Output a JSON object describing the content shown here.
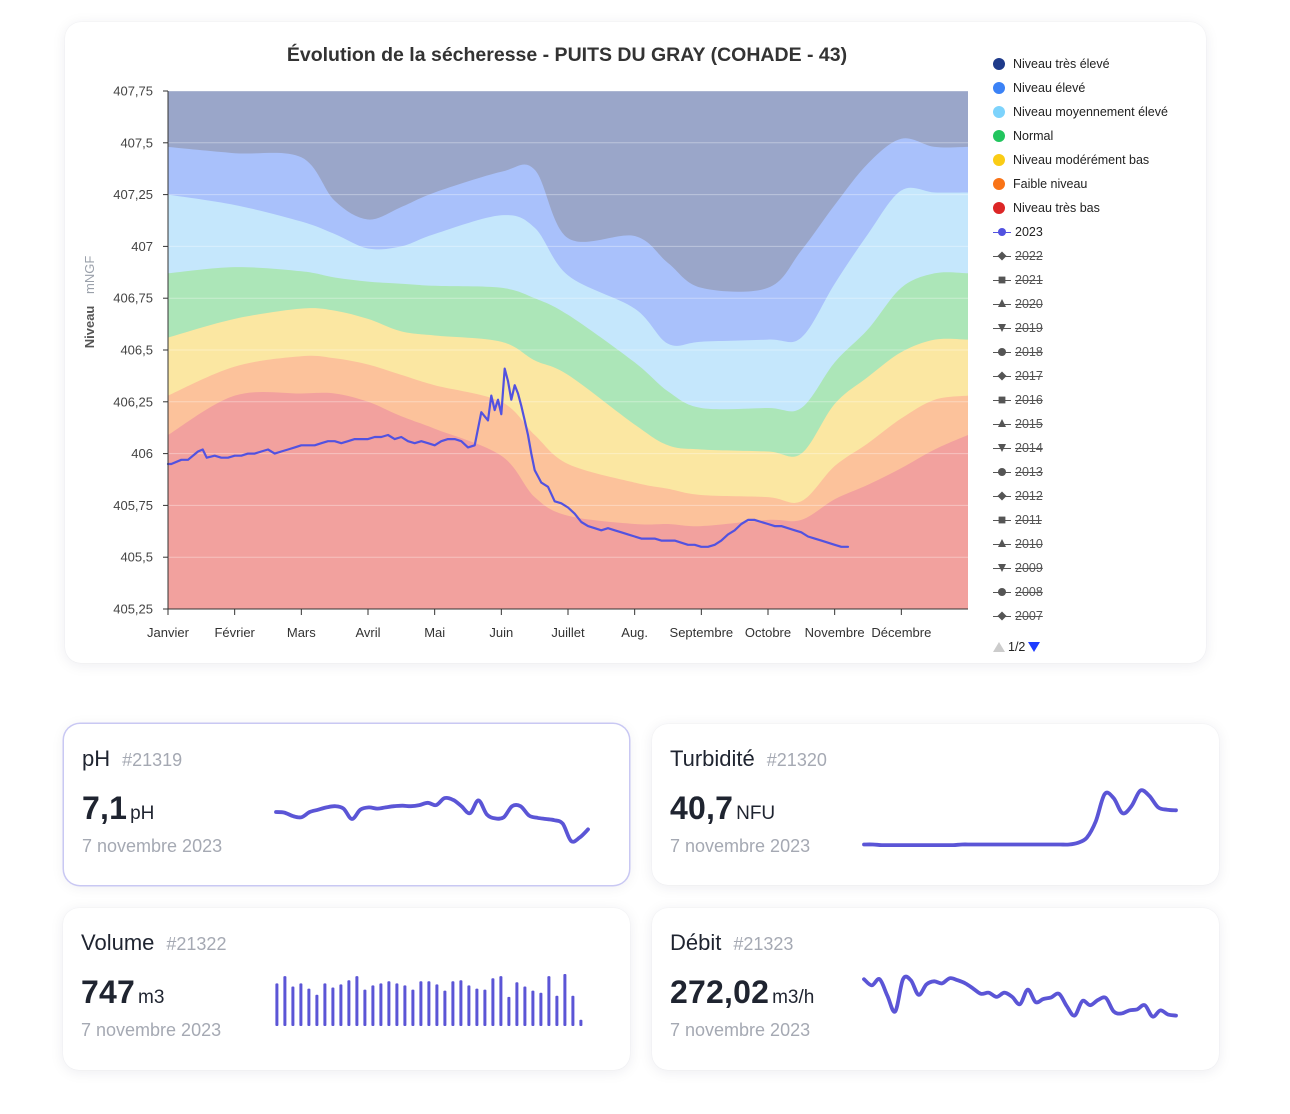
{
  "chart_data": {
    "type": "area",
    "title": "Évolution de la sécheresse - PUITS DU GRAY (COHADE - 43)",
    "ylabel": "Niveau",
    "yunit": "mNGF",
    "ylim": [
      405.25,
      407.75
    ],
    "yticks": [
      405.25,
      405.5,
      405.75,
      406,
      406.25,
      406.5,
      406.75,
      407,
      407.25,
      407.5,
      407.75
    ],
    "ytick_labels": [
      "405,25",
      "405,5",
      "405,75",
      "406",
      "406,25",
      "406,5",
      "406,75",
      "407",
      "407,25",
      "407,5",
      "407,75"
    ],
    "months": [
      "Janvier",
      "Février",
      "Mars",
      "Avril",
      "Mai",
      "Juin",
      "Juillet",
      "Aug.",
      "Septembre",
      "Octobre",
      "Novembre",
      "Décembre"
    ],
    "bands_x": [
      0,
      1,
      2,
      2.5,
      3,
      3.5,
      4,
      5,
      5.5,
      6,
      7,
      7.5,
      8,
      9,
      9.5,
      10,
      10.5,
      11,
      11.5,
      12
    ],
    "bands": [
      {
        "name": "Niveau très élevé",
        "color": "#9aa6c9",
        "upper": [
          407.75,
          407.75,
          407.75,
          407.75,
          407.75,
          407.75,
          407.75,
          407.75,
          407.75,
          407.75,
          407.75,
          407.75,
          407.75,
          407.75,
          407.75,
          407.75,
          407.75,
          407.75,
          407.75,
          407.75
        ]
      },
      {
        "name": "Niveau élevé",
        "color": "#a9c1fb",
        "upper": [
          407.48,
          407.45,
          407.43,
          407.22,
          407.13,
          407.19,
          407.26,
          407.36,
          407.37,
          407.04,
          407.05,
          406.92,
          406.8,
          406.8,
          406.98,
          407.2,
          407.4,
          407.52,
          407.48,
          407.48
        ]
      },
      {
        "name": "Niveau moyennement élevé",
        "color": "#c5e7fc",
        "upper": [
          407.25,
          407.2,
          407.12,
          407.06,
          406.99,
          407.0,
          407.06,
          407.15,
          407.09,
          406.86,
          406.7,
          406.53,
          406.54,
          406.55,
          406.56,
          406.82,
          407.06,
          407.27,
          407.26,
          407.26
        ]
      },
      {
        "name": "Normal",
        "color": "#ace6b8",
        "upper": [
          406.87,
          406.9,
          406.88,
          406.85,
          406.83,
          406.82,
          406.81,
          406.8,
          406.75,
          406.67,
          406.44,
          406.3,
          406.22,
          406.22,
          406.22,
          406.44,
          406.6,
          406.8,
          406.87,
          406.87
        ]
      },
      {
        "name": "Niveau modérément bas",
        "color": "#fbe7a2",
        "upper": [
          406.56,
          406.65,
          406.7,
          406.69,
          406.65,
          406.59,
          406.57,
          406.54,
          406.45,
          406.38,
          406.14,
          406.04,
          406.02,
          406.01,
          406.0,
          406.24,
          406.37,
          406.49,
          406.55,
          406.55
        ]
      },
      {
        "name": "Faible niveau",
        "color": "#fcc29b",
        "upper": [
          406.28,
          406.42,
          406.47,
          406.46,
          406.43,
          406.38,
          406.33,
          406.25,
          406.09,
          405.95,
          405.86,
          405.83,
          405.8,
          405.79,
          405.77,
          405.94,
          406.05,
          406.17,
          406.26,
          406.28
        ]
      },
      {
        "name": "Niveau très bas",
        "color": "#f2a19e",
        "upper": [
          406.09,
          406.28,
          406.29,
          406.29,
          406.25,
          406.18,
          406.12,
          405.99,
          405.79,
          405.7,
          405.66,
          405.66,
          405.65,
          405.68,
          405.68,
          405.78,
          405.85,
          405.93,
          406.02,
          406.09
        ]
      }
    ],
    "series": [
      {
        "name": "2023",
        "color": "#5252e0",
        "x": [
          0,
          0.05,
          0.2,
          0.3,
          0.45,
          0.52,
          0.58,
          0.7,
          0.8,
          0.9,
          1.0,
          1.1,
          1.2,
          1.3,
          1.4,
          1.5,
          1.6,
          1.7,
          1.8,
          1.9,
          2.0,
          2.1,
          2.2,
          2.3,
          2.4,
          2.5,
          2.6,
          2.7,
          2.8,
          2.9,
          3.0,
          3.1,
          3.2,
          3.3,
          3.4,
          3.5,
          3.6,
          3.7,
          3.8,
          3.9,
          4.0,
          4.1,
          4.2,
          4.3,
          4.4,
          4.5,
          4.6,
          4.7,
          4.8,
          4.85,
          4.9,
          4.95,
          5.0,
          5.05,
          5.1,
          5.15,
          5.2,
          5.25,
          5.3,
          5.35,
          5.4,
          5.45,
          5.5,
          5.55,
          5.6,
          5.7,
          5.8,
          5.9,
          6.0,
          6.1,
          6.2,
          6.3,
          6.4,
          6.5,
          6.6,
          6.7,
          6.8,
          6.9,
          7.0,
          7.1,
          7.2,
          7.3,
          7.4,
          7.5,
          7.6,
          7.7,
          7.8,
          7.9,
          8.0,
          8.1,
          8.2,
          8.3,
          8.4,
          8.5,
          8.6,
          8.7,
          8.8,
          8.9,
          9.0,
          9.1,
          9.2,
          9.3,
          9.4,
          9.5,
          9.6,
          9.7,
          9.8,
          9.9,
          10.0,
          10.1,
          10.2
        ],
        "values": [
          405.95,
          405.95,
          405.97,
          405.97,
          406.01,
          406.02,
          405.98,
          405.99,
          405.98,
          405.98,
          405.99,
          405.99,
          406.0,
          406.0,
          406.01,
          406.02,
          406.0,
          406.01,
          406.02,
          406.03,
          406.04,
          406.04,
          406.04,
          406.05,
          406.06,
          406.06,
          406.05,
          406.06,
          406.07,
          406.07,
          406.07,
          406.08,
          406.08,
          406.09,
          406.07,
          406.08,
          406.06,
          406.05,
          406.06,
          406.05,
          406.04,
          406.06,
          406.07,
          406.07,
          406.06,
          406.03,
          406.04,
          406.2,
          406.16,
          406.28,
          406.21,
          406.26,
          406.19,
          406.41,
          406.35,
          406.26,
          406.33,
          406.29,
          406.23,
          406.16,
          406.09,
          406.0,
          405.92,
          405.89,
          405.86,
          405.84,
          405.77,
          405.76,
          405.74,
          405.71,
          405.67,
          405.65,
          405.64,
          405.63,
          405.64,
          405.63,
          405.62,
          405.61,
          405.6,
          405.59,
          405.59,
          405.59,
          405.58,
          405.58,
          405.58,
          405.57,
          405.56,
          405.56,
          405.55,
          405.55,
          405.56,
          405.58,
          405.61,
          405.63,
          405.66,
          405.68,
          405.68,
          405.67,
          405.66,
          405.65,
          405.65,
          405.64,
          405.63,
          405.62,
          405.6,
          405.59,
          405.58,
          405.57,
          405.56,
          405.55,
          405.55
        ]
      }
    ]
  },
  "legend": {
    "bands": [
      {
        "label": "Niveau très élevé",
        "color": "#1e3a8a"
      },
      {
        "label": "Niveau élevé",
        "color": "#3b82f6"
      },
      {
        "label": "Niveau moyennement élevé",
        "color": "#7dd3fc"
      },
      {
        "label": "Normal",
        "color": "#22c55e"
      },
      {
        "label": "Niveau modérément bas",
        "color": "#facc15"
      },
      {
        "label": "Faible niveau",
        "color": "#f97316"
      },
      {
        "label": "Niveau très bas",
        "color": "#dc2626"
      }
    ],
    "years": [
      {
        "label": "2023",
        "marker": "circle",
        "active": true
      },
      {
        "label": "2022",
        "marker": "diamond",
        "active": false
      },
      {
        "label": "2021",
        "marker": "square",
        "active": false
      },
      {
        "label": "2020",
        "marker": "tri-up",
        "active": false
      },
      {
        "label": "2019",
        "marker": "tri-down",
        "active": false
      },
      {
        "label": "2018",
        "marker": "circle",
        "active": false
      },
      {
        "label": "2017",
        "marker": "diamond",
        "active": false
      },
      {
        "label": "2016",
        "marker": "square",
        "active": false
      },
      {
        "label": "2015",
        "marker": "tri-up",
        "active": false
      },
      {
        "label": "2014",
        "marker": "tri-down",
        "active": false
      },
      {
        "label": "2013",
        "marker": "circle",
        "active": false
      },
      {
        "label": "2012",
        "marker": "diamond",
        "active": false
      },
      {
        "label": "2011",
        "marker": "square",
        "active": false
      },
      {
        "label": "2010",
        "marker": "tri-up",
        "active": false
      },
      {
        "label": "2009",
        "marker": "tri-down",
        "active": false
      },
      {
        "label": "2008",
        "marker": "circle",
        "active": false
      },
      {
        "label": "2007",
        "marker": "diamond",
        "active": false
      }
    ],
    "page": "1/2"
  },
  "kpis": [
    {
      "key": "ph",
      "title": "pH",
      "id": "#21319",
      "value": "7,1",
      "unit": "pH",
      "date": "7 novembre 2023",
      "selected": true,
      "spark_type": "line",
      "spark": [
        0.62,
        0.61,
        0.55,
        0.53,
        0.62,
        0.66,
        0.7,
        0.72,
        0.68,
        0.5,
        0.66,
        0.7,
        0.68,
        0.7,
        0.72,
        0.73,
        0.72,
        0.74,
        0.78,
        0.74,
        0.86,
        0.83,
        0.72,
        0.6,
        0.82,
        0.58,
        0.51,
        0.53,
        0.72,
        0.72,
        0.56,
        0.52,
        0.5,
        0.48,
        0.42,
        0.12,
        0.18,
        0.32
      ]
    },
    {
      "key": "turbidite",
      "title": "Turbidité",
      "id": "#21320",
      "value": "40,7",
      "unit": "NFU",
      "date": "7 novembre 2023",
      "selected": false,
      "spark_type": "line",
      "spark": [
        0.06,
        0.06,
        0.05,
        0.05,
        0.05,
        0.05,
        0.05,
        0.05,
        0.05,
        0.05,
        0.05,
        0.06,
        0.06,
        0.06,
        0.06,
        0.06,
        0.06,
        0.06,
        0.06,
        0.06,
        0.06,
        0.06,
        0.06,
        0.06,
        0.09,
        0.18,
        0.46,
        0.93,
        0.86,
        0.6,
        0.72,
        0.99,
        0.9,
        0.7,
        0.66,
        0.65
      ]
    },
    {
      "key": "volume",
      "title": "Volume",
      "id": "#21322",
      "value": "747",
      "unit": "m3",
      "date": "7 novembre 2023",
      "selected": false,
      "spark_type": "bar",
      "spark": [
        0.82,
        0.96,
        0.76,
        0.82,
        0.72,
        0.6,
        0.82,
        0.74,
        0.8,
        0.88,
        0.96,
        0.7,
        0.78,
        0.82,
        0.86,
        0.82,
        0.78,
        0.7,
        0.86,
        0.86,
        0.8,
        0.68,
        0.86,
        0.88,
        0.78,
        0.72,
        0.7,
        0.92,
        0.96,
        0.56,
        0.84,
        0.76,
        0.68,
        0.64,
        0.96,
        0.58,
        1.0,
        0.58,
        0.12
      ]
    },
    {
      "key": "debit",
      "title": "Débit",
      "id": "#21323",
      "value": "272,02",
      "unit": "m3/h",
      "date": "7 novembre 2023",
      "selected": false,
      "spark_type": "line",
      "spark": [
        0.9,
        0.78,
        0.9,
        0.58,
        0.28,
        0.9,
        0.88,
        0.6,
        0.8,
        0.86,
        0.82,
        0.92,
        0.88,
        0.82,
        0.72,
        0.62,
        0.64,
        0.56,
        0.64,
        0.56,
        0.42,
        0.7,
        0.46,
        0.52,
        0.55,
        0.62,
        0.38,
        0.2,
        0.48,
        0.4,
        0.5,
        0.54,
        0.28,
        0.24,
        0.3,
        0.32,
        0.4,
        0.18,
        0.3,
        0.22,
        0.2
      ]
    }
  ]
}
